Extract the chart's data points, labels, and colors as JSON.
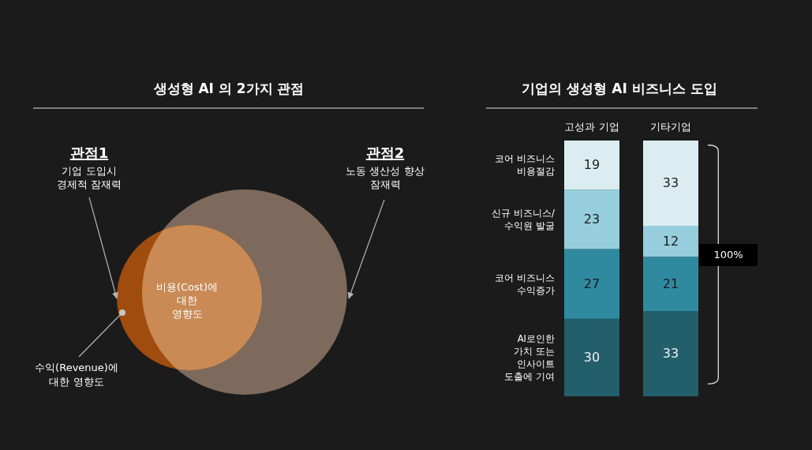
{
  "chart_data": [
    {
      "type": "other",
      "title": "생성형 AI 의 2가지 관점",
      "annotations": [
        "관점1",
        "기업 도입시\n경제적 잠재력",
        "관점2",
        "노동 생산성 향상\n잠재력",
        "비용(Cost)에\n대한\n영향도",
        "수익(Revenue)에\n대한 영향도"
      ]
    },
    {
      "type": "bar",
      "stacked": true,
      "data_labels": true,
      "legend": false,
      "title": "기업의 생성형 AI 비즈니스 도입",
      "categories": [
        "고성과 기업",
        "기타기업"
      ],
      "series": [
        {
          "name": "AI로인한\n가치 또는\n인사이트\n도출에 기여",
          "color": "#235e6b",
          "values": [
            30,
            33
          ]
        },
        {
          "name": "코어 비즈니스\n수익증가",
          "color": "#2f8aa0",
          "values": [
            27,
            21
          ]
        },
        {
          "name": "신규 비즈니스/\n수익원 발굴",
          "color": "#96cedd",
          "values": [
            23,
            12
          ]
        },
        {
          "name": "코어 비즈니스\n비용절감",
          "color": "#dcedf1",
          "values": [
            19,
            33
          ]
        }
      ],
      "annotations": [
        "100%"
      ]
    }
  ]
}
